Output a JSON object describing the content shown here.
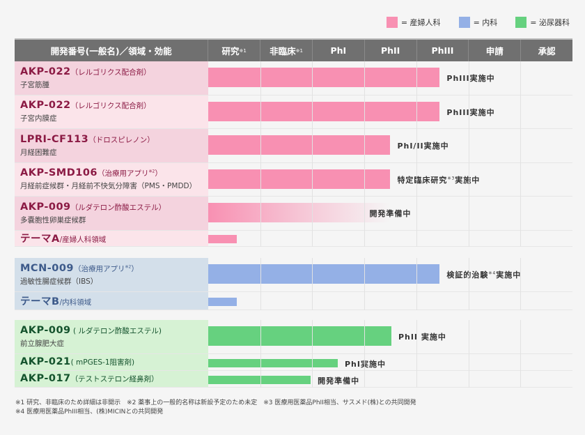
{
  "legend": [
    {
      "label": "= 産婦人科",
      "color": "#f890b2"
    },
    {
      "label": "= 内科",
      "color": "#94b0e6"
    },
    {
      "label": "= 泌尿器科",
      "color": "#66d17f"
    }
  ],
  "header": {
    "columns": [
      {
        "label": "開発番号(一般名)／領域・効能",
        "note": ""
      },
      {
        "label": "研究",
        "note": "※1"
      },
      {
        "label": "非臨床",
        "note": "※1"
      },
      {
        "label": "PhI",
        "note": ""
      },
      {
        "label": "PhII",
        "note": ""
      },
      {
        "label": "PhIII",
        "note": ""
      },
      {
        "label": "申請",
        "note": ""
      },
      {
        "label": "承認",
        "note": ""
      }
    ]
  },
  "chart_data": {
    "type": "bar",
    "orientation": "horizontal",
    "xaxis_categories": [
      "研究",
      "非臨床",
      "PhI",
      "PhII",
      "PhIII",
      "申請",
      "承認"
    ],
    "progress_unit": "stages completed (0–7)",
    "groups": [
      {
        "area": "産婦人科",
        "color": "#f890b2",
        "label_bg": [
          "#f4d3de",
          "#fbe4ea"
        ],
        "text_color": "#8b1a44",
        "rows": [
          {
            "code": "AKP-022",
            "generic": "（レルゴリクス配合剤）",
            "generic_note": "",
            "indication": "子宮筋腫",
            "progress": 4.45,
            "status": "PhIII実施中",
            "status_note": "",
            "status_suffix": "",
            "size": "tall"
          },
          {
            "code": "AKP-022",
            "generic": "（レルゴリクス配合剤）",
            "generic_note": "",
            "indication": "子宮内膜症",
            "progress": 4.45,
            "status": "PhIII実施中",
            "status_note": "",
            "status_suffix": "",
            "size": "tall"
          },
          {
            "code": "LPRI-CF113",
            "generic": "（ドロスピレノン）",
            "generic_note": "",
            "indication": "月経困難症",
            "progress": 3.5,
            "status": "PhI/II実施中",
            "status_note": "",
            "status_suffix": "",
            "size": "tall"
          },
          {
            "code": "AKP-SMD106",
            "generic": "（治療用アプリ",
            "generic_note": "※2",
            "generic_close": "）",
            "indication": "月経前症候群・月経前不快気分障害（PMS・PMDD）",
            "progress": 3.5,
            "status": "特定臨床研究",
            "status_note": "※3",
            "status_suffix": "実施中",
            "size": "tall"
          },
          {
            "code": "AKP-009",
            "generic": "（ルダテロン酢酸エステル）",
            "generic_note": "",
            "indication": "多嚢胞性卵巣症候群",
            "progress": 3.5,
            "status": "開発準備中",
            "status_note": "",
            "status_suffix": "",
            "size": "tall",
            "fade": true
          },
          {
            "code": "テーマA",
            "generic": "/産婦人科領域",
            "generic_note": "",
            "indication": "",
            "progress": 0.55,
            "status": "",
            "status_note": "",
            "status_suffix": "",
            "size": "short"
          }
        ]
      },
      {
        "area": "内科",
        "color": "#94b0e6",
        "label_bg": [
          "#d3dfea",
          "#d3dfea"
        ],
        "text_color": "#3d5a8a",
        "rows": [
          {
            "code": "MCN-009",
            "generic": "（治療用アプリ",
            "generic_note": "※2",
            "generic_close": "）",
            "indication": "過敏性腸症候群（IBS）",
            "progress": 4.45,
            "status": "検証的治験",
            "status_note": "※4",
            "status_suffix": "実施中",
            "size": "tall"
          },
          {
            "code": "テーマB",
            "generic": "/内科領域",
            "generic_note": "",
            "indication": "",
            "progress": 0.55,
            "status": "",
            "status_note": "",
            "status_suffix": "",
            "size": "short"
          }
        ]
      },
      {
        "area": "泌尿器科",
        "color": "#66d17f",
        "label_bg": [
          "#d6f2d4",
          "#d6f2d4"
        ],
        "text_color": "#14532d",
        "rows": [
          {
            "code": "AKP-009",
            "generic": " ( ルダテロン酢酸エステル)",
            "generic_note": "",
            "indication": "前立腺肥大症",
            "progress": 3.52,
            "status": "PhII 実施中",
            "status_note": "",
            "status_suffix": "",
            "size": "tall"
          },
          {
            "code": "AKP-021",
            "generic": "( mPGES-1阻害剤)",
            "generic_note": "",
            "indication": "",
            "progress": 2.49,
            "status": "PhI実施中",
            "status_note": "",
            "status_suffix": "",
            "size": "short"
          },
          {
            "code": "AKP-017",
            "generic": "（テストステロン経鼻剤）",
            "generic_note": "",
            "indication": "",
            "progress": 1.97,
            "status": "開発準備中",
            "status_note": "",
            "status_suffix": "",
            "size": "short"
          }
        ]
      }
    ]
  },
  "footnotes": [
    "※1 研究、非臨床のため詳細は非開示　※2 薬事上の一般的名称は新設予定のため未定　※3 医療用医薬品PhII相当、サスメド(株)との共同開発",
    "※4 医療用医薬品PhIII相当、(株)MICINとの共同開発"
  ]
}
